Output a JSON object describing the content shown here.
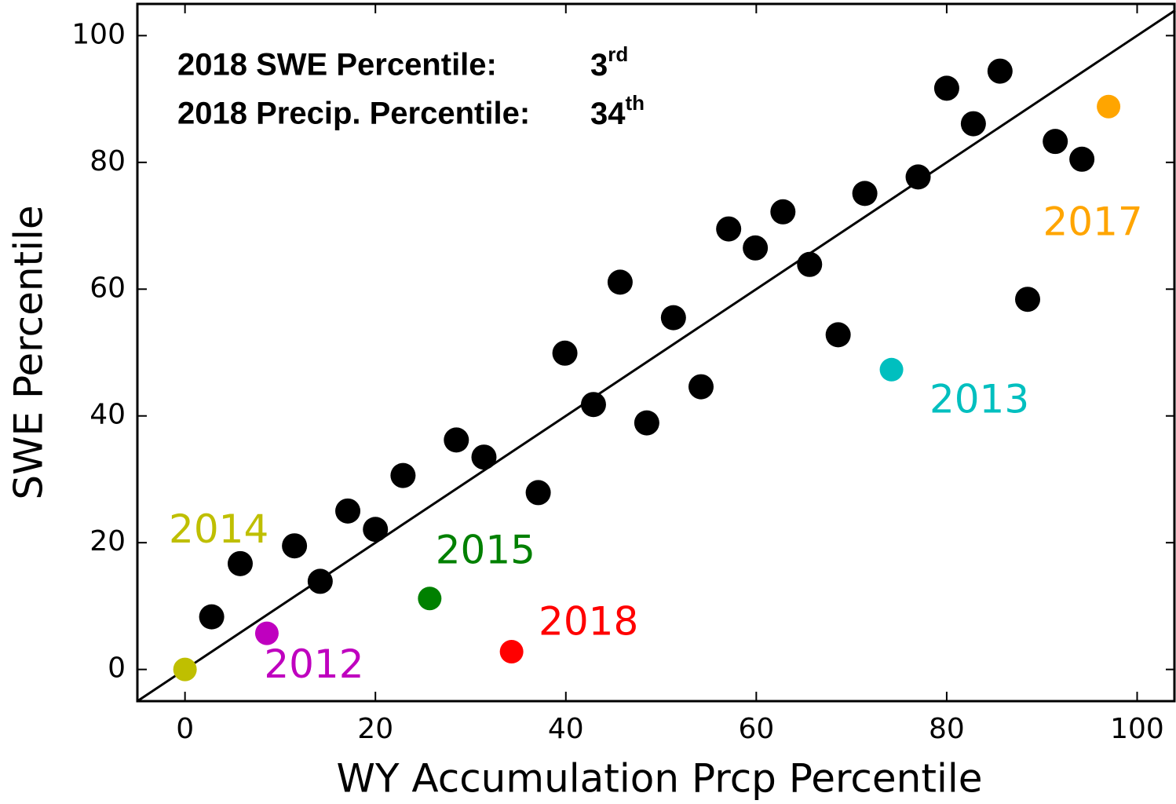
{
  "chart_data": {
    "type": "scatter",
    "xlabel": "WY Accumulation Prcp Percentile",
    "ylabel": "SWE Percentile",
    "xlim": [
      -5,
      104
    ],
    "ylim": [
      -5,
      105
    ],
    "xticks": [
      0,
      20,
      40,
      60,
      80,
      100
    ],
    "yticks": [
      0,
      20,
      40,
      60,
      80,
      100
    ],
    "identity_line": true,
    "annotations": [
      {
        "text": "2018 SWE Percentile:",
        "value": 3,
        "suffix": "rd"
      },
      {
        "text": "2018 Precip. Percentile:",
        "value": 34,
        "suffix": "th"
      }
    ],
    "series": [
      {
        "color": "#000000",
        "x": [
          2.8,
          5.8,
          11.5,
          14.2,
          17.1,
          20.0,
          22.9,
          28.5,
          31.4,
          37.1,
          39.9,
          42.9,
          45.7,
          48.5,
          51.3,
          54.2,
          57.1,
          59.9,
          62.8,
          65.6,
          68.6,
          71.4,
          77.0,
          80.0,
          82.8,
          85.6,
          88.5,
          91.4,
          94.2
        ],
        "values": [
          8.3,
          16.7,
          19.5,
          13.9,
          25.0,
          22.1,
          30.6,
          36.2,
          33.5,
          27.9,
          49.9,
          41.8,
          61.1,
          38.9,
          55.5,
          44.6,
          69.5,
          66.5,
          72.2,
          63.9,
          52.8,
          75.1,
          77.7,
          91.7,
          86.1,
          94.4,
          58.4,
          83.3,
          80.5
        ]
      },
      {
        "name": "2014",
        "color": "#bfbf00",
        "x": [
          0
        ],
        "values": [
          0
        ]
      },
      {
        "name": "2012",
        "color": "#bf00bf",
        "x": [
          8.6
        ],
        "values": [
          5.7
        ]
      },
      {
        "name": "2015",
        "color": "#008000",
        "x": [
          25.7
        ],
        "values": [
          11.2
        ]
      },
      {
        "name": "2018",
        "color": "#ff0000",
        "x": [
          34.3
        ],
        "values": [
          2.8
        ]
      },
      {
        "name": "2013",
        "color": "#00bfbf",
        "x": [
          74.2
        ],
        "values": [
          47.3
        ]
      },
      {
        "name": "2017",
        "color": "#ffa500",
        "x": [
          97.0
        ],
        "values": [
          88.8
        ]
      }
    ]
  }
}
